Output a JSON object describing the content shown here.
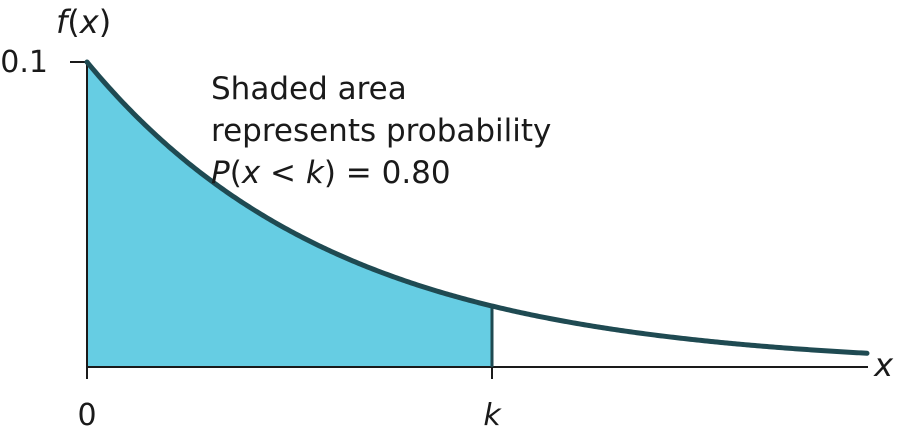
{
  "chart_data": {
    "type": "area",
    "distribution": "exponential",
    "ylabel_func": "f",
    "ylabel_var": "x",
    "xlabel": "x",
    "y_ticks": [
      {
        "value": 0.1,
        "label": "0.1"
      }
    ],
    "x_ticks": [
      {
        "label": "0",
        "italic": false,
        "at": "zero"
      },
      {
        "label": "k",
        "italic": true,
        "at": "k"
      }
    ],
    "annotation": {
      "line1": "Shaded area",
      "line2": "represents probability",
      "prob_expr": {
        "p": "P",
        "open": "(",
        "var": "x",
        "op": " < ",
        "bound": "k",
        "close": ")",
        "rest": " = 0.80"
      }
    },
    "shaded_probability": 0.8,
    "curve_start_density": 0.1,
    "colors": {
      "fill": "#66CDE3",
      "curve": "#1F4A52",
      "axis": "#1a1a1a",
      "text": "#1a1a1a"
    }
  }
}
